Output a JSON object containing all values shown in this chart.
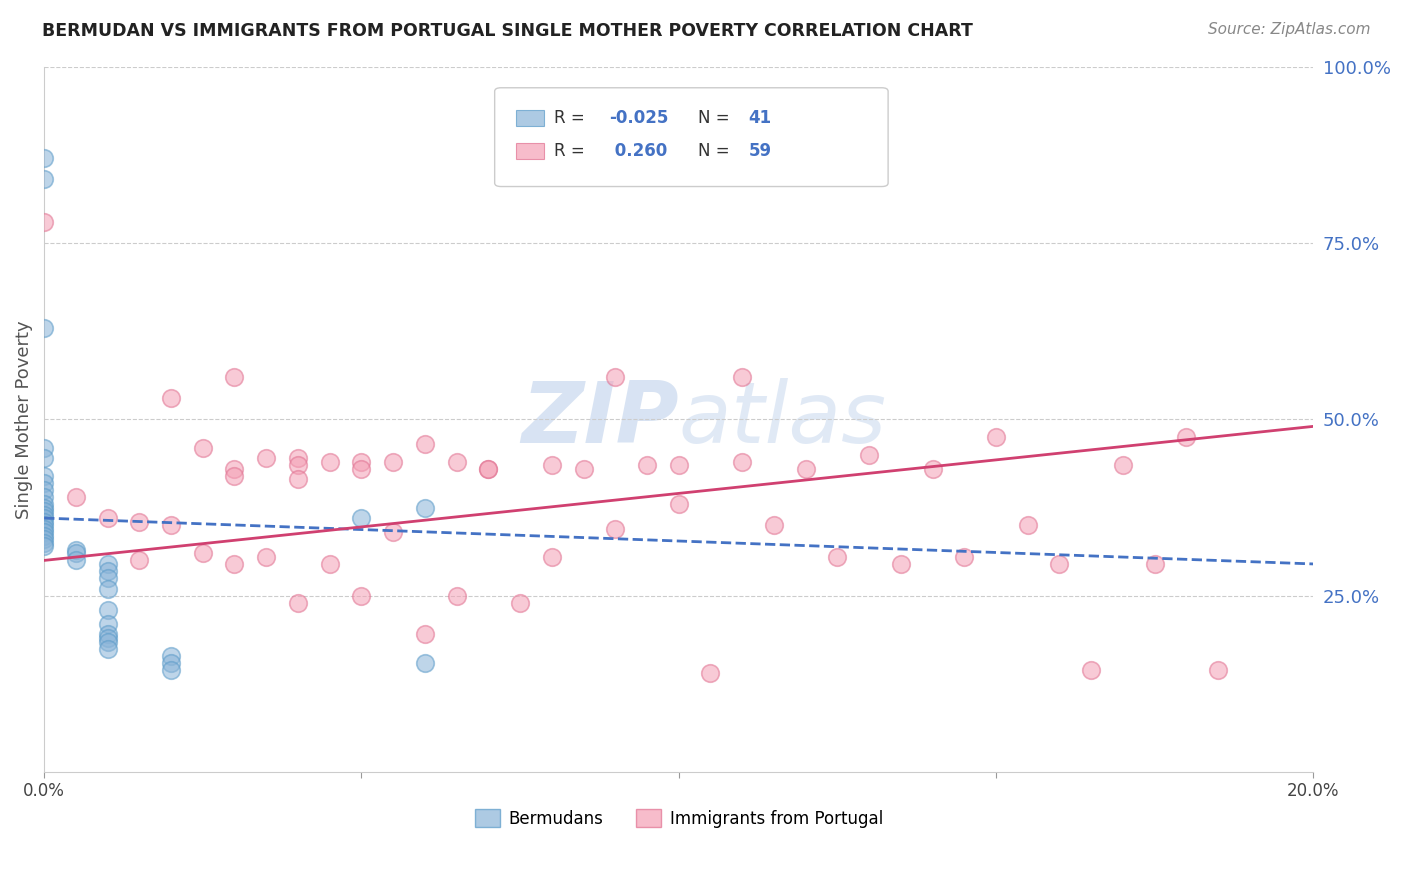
{
  "title": "BERMUDAN VS IMMIGRANTS FROM PORTUGAL SINGLE MOTHER POVERTY CORRELATION CHART",
  "source": "Source: ZipAtlas.com",
  "ylabel": "Single Mother Poverty",
  "xlim": [
    0.0,
    0.2
  ],
  "ylim": [
    0.0,
    1.0
  ],
  "right_tick_color": "#4472c4",
  "legend_label1": "Bermudans",
  "legend_label2": "Immigrants from Portugal",
  "blue_color": "#8ab4d8",
  "pink_color": "#f4a0b5",
  "blue_edge_color": "#5a9ac8",
  "pink_edge_color": "#e07090",
  "blue_line_color": "#4472c4",
  "pink_line_color": "#d04070",
  "watermark_color": "#c8d8ee",
  "blue_points_x": [
    0.0,
    0.0,
    0.0,
    0.0,
    0.0,
    0.0,
    0.0,
    0.0,
    0.0,
    0.0,
    0.0,
    0.0,
    0.0,
    0.0,
    0.0,
    0.0,
    0.0,
    0.0,
    0.0,
    0.0,
    0.0,
    0.0,
    0.005,
    0.005,
    0.005,
    0.01,
    0.01,
    0.01,
    0.01,
    0.01,
    0.01,
    0.01,
    0.01,
    0.01,
    0.01,
    0.02,
    0.02,
    0.02,
    0.05,
    0.06,
    0.06
  ],
  "blue_points_y": [
    0.87,
    0.84,
    0.63,
    0.46,
    0.445,
    0.42,
    0.41,
    0.4,
    0.39,
    0.38,
    0.375,
    0.37,
    0.365,
    0.36,
    0.355,
    0.35,
    0.345,
    0.34,
    0.335,
    0.33,
    0.325,
    0.32,
    0.315,
    0.31,
    0.3,
    0.295,
    0.285,
    0.275,
    0.26,
    0.23,
    0.21,
    0.195,
    0.19,
    0.185,
    0.175,
    0.165,
    0.155,
    0.145,
    0.36,
    0.375,
    0.155
  ],
  "pink_points_x": [
    0.0,
    0.005,
    0.01,
    0.015,
    0.015,
    0.02,
    0.02,
    0.025,
    0.025,
    0.03,
    0.03,
    0.03,
    0.03,
    0.035,
    0.035,
    0.04,
    0.04,
    0.04,
    0.04,
    0.045,
    0.045,
    0.05,
    0.05,
    0.05,
    0.055,
    0.055,
    0.06,
    0.06,
    0.065,
    0.065,
    0.07,
    0.07,
    0.075,
    0.08,
    0.08,
    0.085,
    0.09,
    0.09,
    0.095,
    0.1,
    0.1,
    0.105,
    0.11,
    0.11,
    0.115,
    0.12,
    0.125,
    0.13,
    0.135,
    0.14,
    0.145,
    0.15,
    0.155,
    0.16,
    0.165,
    0.17,
    0.175,
    0.18,
    0.185
  ],
  "pink_points_y": [
    0.78,
    0.39,
    0.36,
    0.355,
    0.3,
    0.53,
    0.35,
    0.46,
    0.31,
    0.56,
    0.43,
    0.42,
    0.295,
    0.445,
    0.305,
    0.445,
    0.435,
    0.415,
    0.24,
    0.44,
    0.295,
    0.44,
    0.43,
    0.25,
    0.44,
    0.34,
    0.465,
    0.195,
    0.44,
    0.25,
    0.43,
    0.43,
    0.24,
    0.435,
    0.305,
    0.43,
    0.56,
    0.345,
    0.435,
    0.435,
    0.38,
    0.14,
    0.56,
    0.44,
    0.35,
    0.43,
    0.305,
    0.45,
    0.295,
    0.43,
    0.305,
    0.475,
    0.35,
    0.295,
    0.145,
    0.435,
    0.295,
    0.475,
    0.145
  ],
  "blue_line_x": [
    0.0,
    0.2
  ],
  "blue_line_y": [
    0.36,
    0.295
  ],
  "pink_line_x": [
    0.0,
    0.2
  ],
  "pink_line_y": [
    0.3,
    0.49
  ]
}
